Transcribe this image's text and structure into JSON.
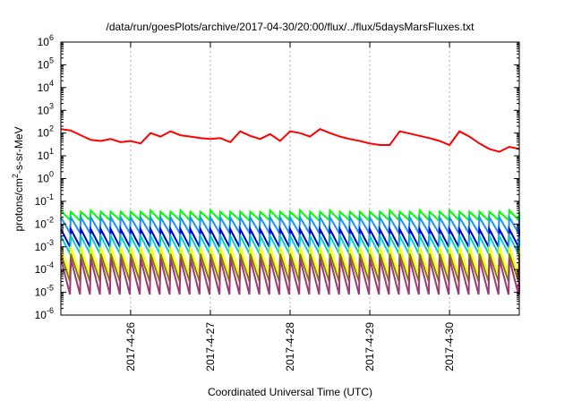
{
  "chart_data": {
    "type": "line",
    "title": "/data/run/goesPlots/archive/2017-04-30/20:00/flux/../flux/5daysMarsFluxes.txt",
    "xlabel": "Coordinated Universal Time (UTC)",
    "ylabel": {
      "base": "protons/cm",
      "sup": "2",
      "rest": "-s-sr-MeV"
    },
    "x_range": [
      "2017-04-25T03:00",
      "2017-04-30T21:00"
    ],
    "x_ticks": [
      "2017-4-26",
      "2017-4-27",
      "2017-4-28",
      "2017-4-29",
      "2017-4-30"
    ],
    "y_scale": "log",
    "y_range": [
      1e-06,
      1000000.0
    ],
    "y_ticks": [
      {
        "value": 1e-06,
        "base": "10",
        "exp": "-6"
      },
      {
        "value": 1e-05,
        "base": "10",
        "exp": "-5"
      },
      {
        "value": 0.0001,
        "base": "10",
        "exp": "-4"
      },
      {
        "value": 0.001,
        "base": "10",
        "exp": "-3"
      },
      {
        "value": 0.01,
        "base": "10",
        "exp": "-2"
      },
      {
        "value": 0.1,
        "base": "10",
        "exp": "-1"
      },
      {
        "value": 1.0,
        "base": "10",
        "exp": "0"
      },
      {
        "value": 10.0,
        "base": "10",
        "exp": "1"
      },
      {
        "value": 100.0,
        "base": "10",
        "exp": "2"
      },
      {
        "value": 1000.0,
        "base": "10",
        "exp": "3"
      },
      {
        "value": 10000.0,
        "base": "10",
        "exp": "4"
      },
      {
        "value": 100000.0,
        "base": "10",
        "exp": "5"
      },
      {
        "value": 1000000.0,
        "base": "10",
        "exp": "6"
      }
    ],
    "grid": true,
    "series": [
      {
        "color": "#ff0000",
        "x": [
          "2017-04-25T03:00",
          "2017-04-25T06:00",
          "2017-04-25T09:00",
          "2017-04-25T12:00",
          "2017-04-25T15:00",
          "2017-04-25T18:00",
          "2017-04-25T21:00",
          "2017-04-26T00:00",
          "2017-04-26T03:00",
          "2017-04-26T06:00",
          "2017-04-26T09:00",
          "2017-04-26T12:00",
          "2017-04-26T15:00",
          "2017-04-26T18:00",
          "2017-04-26T21:00",
          "2017-04-27T00:00",
          "2017-04-27T03:00",
          "2017-04-27T06:00",
          "2017-04-27T09:00",
          "2017-04-27T12:00",
          "2017-04-27T15:00",
          "2017-04-27T18:00",
          "2017-04-27T21:00",
          "2017-04-28T00:00",
          "2017-04-28T03:00",
          "2017-04-28T06:00",
          "2017-04-28T09:00",
          "2017-04-28T12:00",
          "2017-04-28T15:00",
          "2017-04-28T18:00",
          "2017-04-28T21:00",
          "2017-04-29T00:00",
          "2017-04-29T03:00",
          "2017-04-29T06:00",
          "2017-04-29T09:00",
          "2017-04-29T12:00",
          "2017-04-29T15:00",
          "2017-04-29T18:00",
          "2017-04-29T21:00",
          "2017-04-30T00:00",
          "2017-04-30T03:00",
          "2017-04-30T06:00",
          "2017-04-30T09:00",
          "2017-04-30T12:00",
          "2017-04-30T15:00",
          "2017-04-30T18:00",
          "2017-04-30T21:00"
        ],
        "values": [
          150,
          130,
          80,
          50,
          45,
          55,
          40,
          45,
          35,
          100,
          70,
          120,
          80,
          70,
          60,
          55,
          60,
          40,
          120,
          75,
          55,
          90,
          45,
          120,
          100,
          70,
          150,
          100,
          70,
          55,
          45,
          35,
          30,
          30,
          120,
          95,
          75,
          60,
          45,
          30,
          120,
          70,
          35,
          20,
          15,
          25,
          20
        ]
      },
      {
        "color": "#00ff00",
        "sawtooth": true,
        "period_hours": 3,
        "peak_values": [
          0.04,
          0.035,
          0.035,
          0.04,
          0.035,
          0.035,
          0.035,
          0.035,
          0.035,
          0.04,
          0.035,
          0.035
        ],
        "trough_values": [
          0.015,
          0.014,
          0.015,
          0.015,
          0.015,
          0.015,
          0.014,
          0.015,
          0.015,
          0.015,
          0.015,
          0.015
        ]
      },
      {
        "color": "#1e90ff",
        "sawtooth": true,
        "period_hours": 3,
        "peak_values": [
          0.02,
          0.02,
          0.02,
          0.02,
          0.02,
          0.02
        ],
        "trough_values": [
          0.004,
          0.004,
          0.004,
          0.004,
          0.004,
          0.004
        ]
      },
      {
        "color": "#0000cd",
        "sawtooth": true,
        "period_hours": 3,
        "peak_values": [
          0.006,
          0.006,
          0.006,
          0.006,
          0.006,
          0.006
        ],
        "trough_values": [
          0.001,
          0.001,
          0.001,
          0.001,
          0.001,
          0.001
        ]
      },
      {
        "color": "#00ced1",
        "sawtooth": true,
        "period_hours": 3,
        "peak_values": [
          0.003,
          0.003,
          0.003,
          0.003,
          0.003,
          0.003
        ],
        "trough_values": [
          0.0005,
          0.0005,
          0.0005,
          0.0005,
          0.0005,
          0.0005
        ]
      },
      {
        "color": "#ffff00",
        "sawtooth": true,
        "period_hours": 3,
        "peak_values": [
          0.001,
          0.001,
          0.001,
          0.001,
          0.001,
          0.001
        ],
        "trough_values": [
          6e-05,
          6e-05,
          6e-05,
          6e-05,
          6e-05,
          6e-05
        ]
      },
      {
        "color": "#808000",
        "sawtooth": true,
        "period_hours": 3,
        "peak_values": [
          0.0005,
          0.0005,
          0.0005,
          0.0005,
          0.0005,
          0.0005
        ],
        "trough_values": [
          3e-05,
          3e-05,
          3e-05,
          3e-05,
          3e-05,
          3e-05
        ]
      },
      {
        "color": "#9b3a73",
        "sawtooth": true,
        "period_hours": 3,
        "peak_values": [
          0.0003,
          0.0003,
          0.0003,
          0.0003,
          0.0003,
          0.0003
        ],
        "trough_values": [
          8e-06,
          8e-06,
          8e-06,
          8e-06,
          8e-06,
          8e-06
        ]
      }
    ]
  }
}
